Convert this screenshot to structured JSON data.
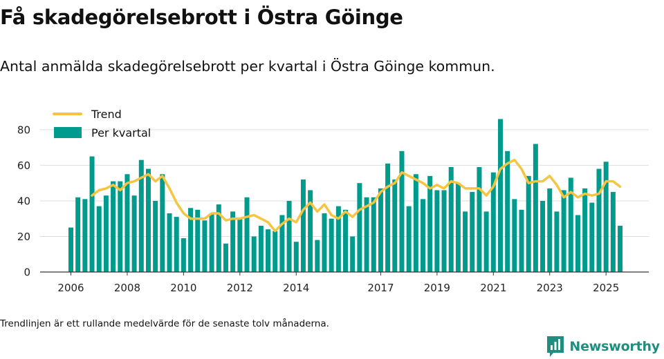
{
  "title": "Få skadegörelsebrott i Östra Göinge",
  "subtitle": "Antal anmälda skadegörelsebrott per kvartal i Östra Göinge kommun.",
  "footnote": "Trendlinjen är ett rullande medelvärde för de senaste tolv månaderna.",
  "brand": {
    "name": "Newsworthy"
  },
  "colors": {
    "bar": "#009b8d",
    "trend": "#f5c542",
    "grid": "#dddddd",
    "axis": "#333333",
    "brand": "#1e8e7e"
  },
  "chart_data": {
    "type": "bar",
    "ylim": [
      0,
      85
    ],
    "yticks": [
      0,
      20,
      40,
      60,
      80
    ],
    "grid": true,
    "legend_position": "top-left",
    "xtick_labels": [
      {
        "label": "2006",
        "index": 0
      },
      {
        "label": "2008",
        "index": 8
      },
      {
        "label": "2010",
        "index": 16
      },
      {
        "label": "2012",
        "index": 24
      },
      {
        "label": "2014",
        "index": 32
      },
      {
        "label": "2017",
        "index": 44
      },
      {
        "label": "2019",
        "index": 52
      },
      {
        "label": "2021",
        "index": 60
      },
      {
        "label": "2023",
        "index": 68
      },
      {
        "label": "2025",
        "index": 76
      }
    ],
    "series": [
      {
        "name": "Per kvartal",
        "type": "bar",
        "values": [
          25,
          42,
          41,
          65,
          37,
          43,
          51,
          51,
          55,
          43,
          63,
          58,
          40,
          55,
          33,
          31,
          19,
          36,
          35,
          29,
          33,
          38,
          16,
          34,
          30,
          42,
          20,
          26,
          24,
          23,
          32,
          40,
          17,
          52,
          46,
          18,
          33,
          30,
          37,
          35,
          20,
          50,
          42,
          42,
          47,
          61,
          52,
          68,
          37,
          55,
          41,
          54,
          46,
          46,
          59,
          50,
          34,
          45,
          59,
          34,
          56,
          86,
          68,
          41,
          35,
          54,
          72,
          40,
          47,
          34,
          46,
          53,
          32,
          47,
          39,
          58,
          62,
          45,
          26
        ]
      },
      {
        "name": "Trend",
        "type": "line",
        "start_index": 3,
        "values": [
          43,
          46,
          47,
          49,
          46,
          50,
          51,
          53,
          55,
          51,
          54,
          47,
          39,
          33,
          30,
          30,
          30,
          33,
          33,
          29,
          30,
          30,
          31,
          32,
          30,
          28,
          23,
          27,
          30,
          28,
          35,
          39,
          34,
          38,
          32,
          30,
          34,
          31,
          35,
          37,
          39,
          45,
          48,
          50,
          56,
          54,
          52,
          50,
          47,
          49,
          47,
          51,
          50,
          47,
          47,
          47,
          43,
          48,
          58,
          61,
          63,
          58,
          50,
          51,
          51,
          54,
          49,
          42,
          45,
          42,
          44,
          43,
          44,
          51,
          51,
          48
        ]
      }
    ]
  }
}
